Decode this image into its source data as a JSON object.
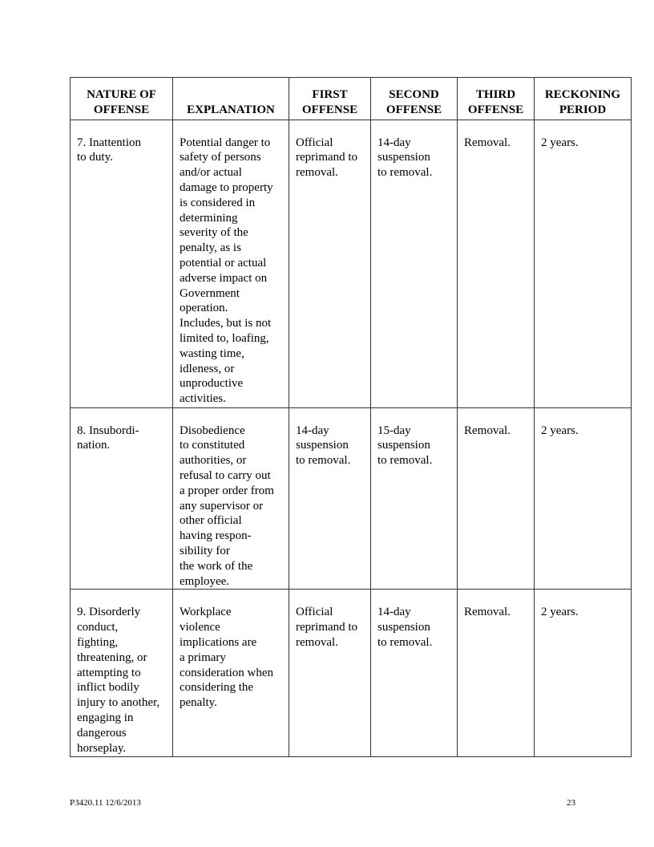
{
  "headers": [
    [
      "NATURE OF",
      "OFFENSE"
    ],
    [
      "EXPLANATION"
    ],
    [
      "FIRST",
      "OFFENSE"
    ],
    [
      "SECOND",
      "OFFENSE"
    ],
    [
      "THIRD",
      "OFFENSE"
    ],
    [
      "RECKONING",
      "PERIOD"
    ]
  ],
  "rows": [
    [
      [
        "7. Inattention",
        "to duty."
      ],
      [
        "Potential danger to",
        "safety of persons",
        "and/or actual",
        "damage to property",
        "is considered in",
        "determining",
        "severity of the",
        "penalty, as is",
        "potential or actual",
        "adverse impact on",
        "Government",
        "operation.",
        "Includes, but is not",
        "limited to, loafing,",
        "wasting time,",
        "idleness, or",
        "unproductive",
        "activities."
      ],
      [
        "Official",
        "reprimand to",
        "removal."
      ],
      [
        "14-day",
        "suspension",
        "to removal."
      ],
      [
        "Removal."
      ],
      [
        "2 years."
      ]
    ],
    [
      [
        "8. Insubordi-",
        "nation."
      ],
      [
        "Disobedience",
        "to constituted",
        "authorities, or",
        "refusal to carry out",
        "a proper order from",
        "any supervisor or",
        "other official",
        "having respon-",
        "sibility for",
        "the work of the",
        "employee."
      ],
      [
        "14-day",
        "suspension",
        "to removal."
      ],
      [
        "15-day",
        "suspension",
        "to removal."
      ],
      [
        "Removal."
      ],
      [
        "2 years."
      ]
    ],
    [
      [
        "9. Disorderly",
        "conduct,",
        "fighting,",
        "threatening, or",
        "attempting to",
        "inflict bodily",
        "injury to another,",
        "engaging in",
        "dangerous",
        "horseplay."
      ],
      [
        "Workplace",
        "violence",
        "implications are",
        "a primary",
        "consideration when",
        "considering the",
        "penalty."
      ],
      [
        "Official",
        "reprimand to",
        "removal."
      ],
      [
        "14-day",
        "suspension",
        "to removal."
      ],
      [
        "Removal."
      ],
      [
        "2 years."
      ]
    ]
  ],
  "footer": {
    "doc_id": "P3420.11   12/6/2013",
    "page_number": "23"
  }
}
